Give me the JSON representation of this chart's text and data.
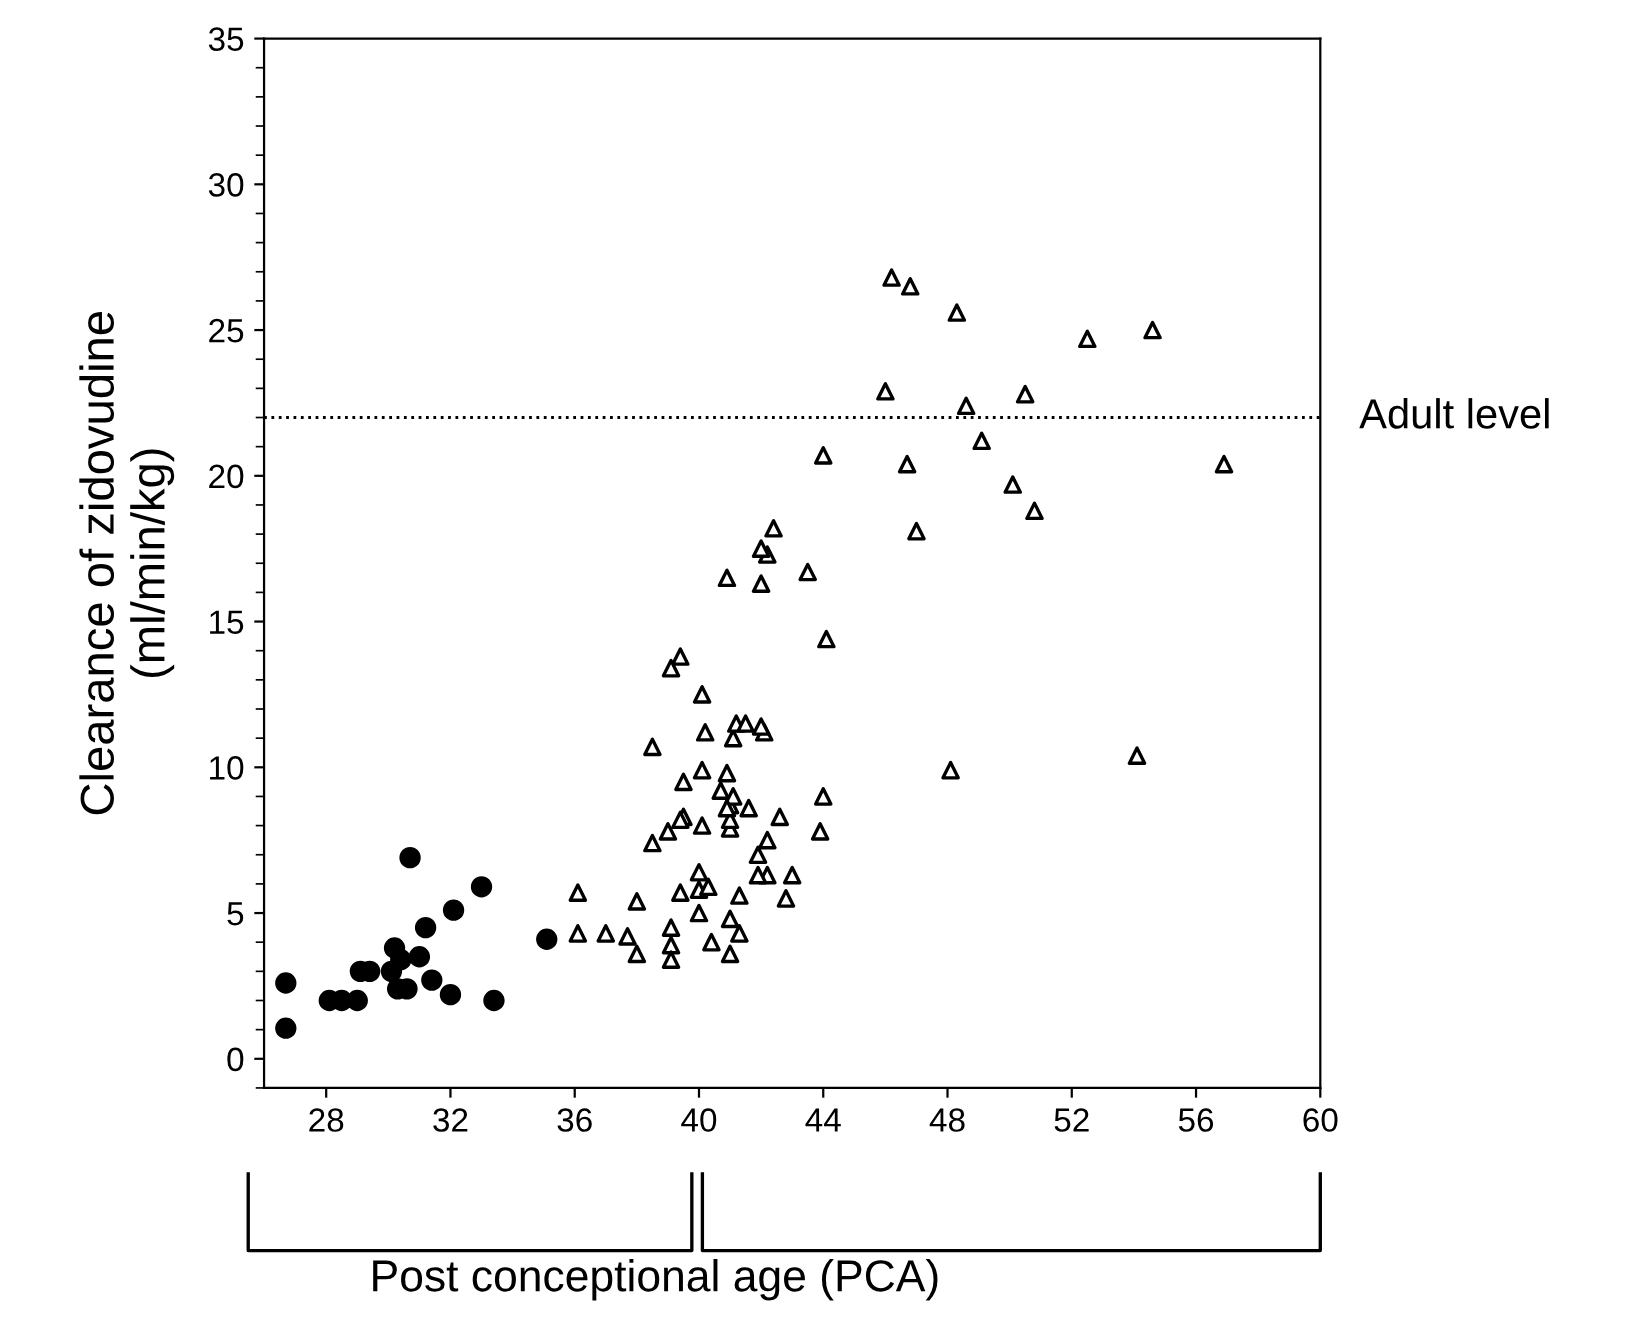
{
  "chart_data": {
    "type": "scatter",
    "xlabel": "Post conceptional age (PCA)",
    "ylabel": "Clearance of zidovudine\n(ml/min/kg)",
    "xlim": [
      26,
      60
    ],
    "ylim": [
      -1,
      35
    ],
    "xticks": [
      28,
      32,
      36,
      40,
      44,
      48,
      52,
      56,
      60
    ],
    "yticks": [
      0,
      5,
      10,
      15,
      20,
      25,
      30,
      35
    ],
    "grid": false,
    "legend": false,
    "ref_lines": [
      {
        "axis": "y",
        "value": 22,
        "label": "Adult level",
        "color": "#000000",
        "line_style": "dotted"
      }
    ],
    "series": [
      {
        "color": "#000000",
        "marker": "circle",
        "x": [
          26.7,
          26.7,
          28.1,
          28.5,
          29.0,
          29.1,
          29.4,
          30.2,
          30.1,
          30.4,
          30.3,
          30.6,
          30.7,
          31.0,
          31.2,
          31.4,
          32.0,
          32.1,
          33.0,
          33.4,
          35.1
        ],
        "values": [
          2.6,
          1.05,
          2.0,
          2.0,
          2.0,
          3.0,
          3.0,
          3.8,
          3.0,
          3.4,
          2.4,
          2.4,
          6.9,
          3.5,
          4.5,
          2.7,
          2.2,
          5.1,
          5.9,
          2.0,
          4.1
        ]
      },
      {
        "color": "#000000",
        "marker": "triangle",
        "x": [
          36.1,
          36.1,
          37.0,
          37.7,
          38.0,
          38.0,
          38.5,
          39.0,
          39.5,
          40.1,
          39.1,
          39.1,
          39.1,
          39.4,
          40.0,
          40.0,
          40.0,
          40.3,
          40.4,
          41.0,
          41.0,
          41.3,
          41.3,
          41.0,
          41.0,
          41.0,
          41.6,
          41.9,
          42.2,
          42.2,
          41.9,
          42.6,
          42.8,
          43.0,
          44.1,
          39.4,
          39.1,
          40.1,
          38.5,
          40.2,
          41.1,
          41.2,
          41.5,
          42.1,
          42.0,
          48.1,
          40.1,
          39.5,
          40.9,
          40.7,
          41.1,
          40.9,
          44.0,
          39.4,
          43.9,
          48.3,
          52.5,
          54.6,
          46.0,
          50.5,
          48.6,
          49.1,
          44.0,
          46.7,
          50.1,
          50.8,
          56.9,
          47.0,
          42.4,
          42.2,
          43.5,
          54.1,
          46.2,
          46.8,
          40.9,
          42.0,
          42.0
        ],
        "values": [
          5.7,
          4.3,
          4.3,
          4.2,
          3.6,
          5.4,
          7.4,
          7.8,
          8.3,
          8.0,
          4.5,
          3.9,
          3.4,
          5.7,
          5.0,
          5.8,
          6.4,
          5.9,
          4.0,
          4.8,
          3.6,
          4.3,
          5.6,
          7.9,
          8.2,
          8.7,
          8.6,
          7.0,
          7.5,
          6.3,
          6.3,
          8.3,
          5.5,
          6.3,
          14.4,
          13.8,
          13.4,
          12.5,
          10.7,
          11.2,
          11.0,
          11.5,
          11.5,
          11.2,
          11.4,
          9.9,
          9.9,
          9.5,
          9.8,
          9.2,
          9.0,
          8.6,
          9.0,
          8.2,
          7.8,
          25.6,
          24.7,
          25.0,
          22.9,
          22.8,
          22.4,
          21.2,
          20.7,
          20.4,
          19.7,
          18.8,
          20.4,
          18.1,
          18.2,
          17.3,
          16.7,
          10.4,
          26.8,
          26.5,
          16.5,
          16.3,
          17.5
        ]
      }
    ]
  }
}
